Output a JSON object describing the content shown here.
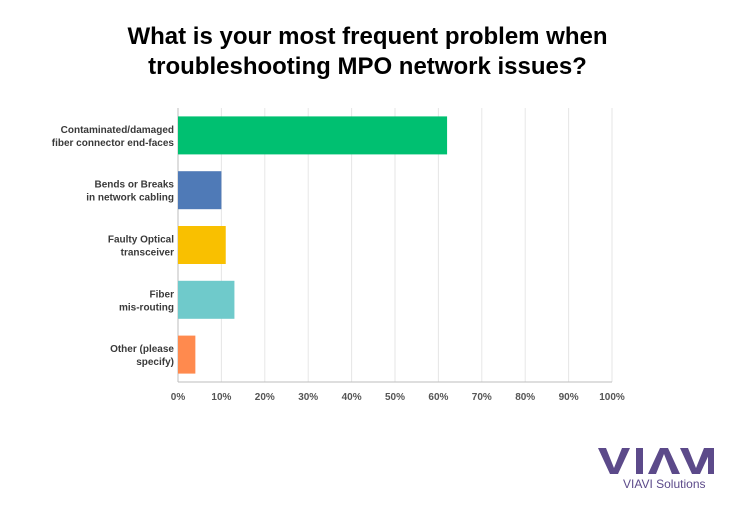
{
  "title_lines": [
    "What is your most frequent problem when",
    "troubleshooting MPO network issues?"
  ],
  "chart_data": {
    "type": "bar",
    "orientation": "horizontal",
    "categories": [
      [
        "Contaminated/damaged",
        "fiber connector end-faces"
      ],
      [
        "Bends or Breaks",
        "in network cabling"
      ],
      [
        "Faulty Optical",
        "transceiver"
      ],
      [
        "Fiber",
        "mis-routing"
      ],
      [
        "Other (please",
        "specify)"
      ]
    ],
    "values": [
      62,
      10,
      11,
      13,
      4
    ],
    "colors": [
      "#00c071",
      "#4f7ab7",
      "#f9c000",
      "#6fcacb",
      "#ff8a4e"
    ],
    "xticks": [
      "0%",
      "10%",
      "20%",
      "30%",
      "40%",
      "50%",
      "60%",
      "70%",
      "80%",
      "90%",
      "100%"
    ],
    "xlim": [
      0,
      100
    ],
    "grid": true
  },
  "logo": {
    "wordmark": "VIAVI",
    "tagline": "VIAVI Solutions",
    "color": "#5c4a8a"
  }
}
